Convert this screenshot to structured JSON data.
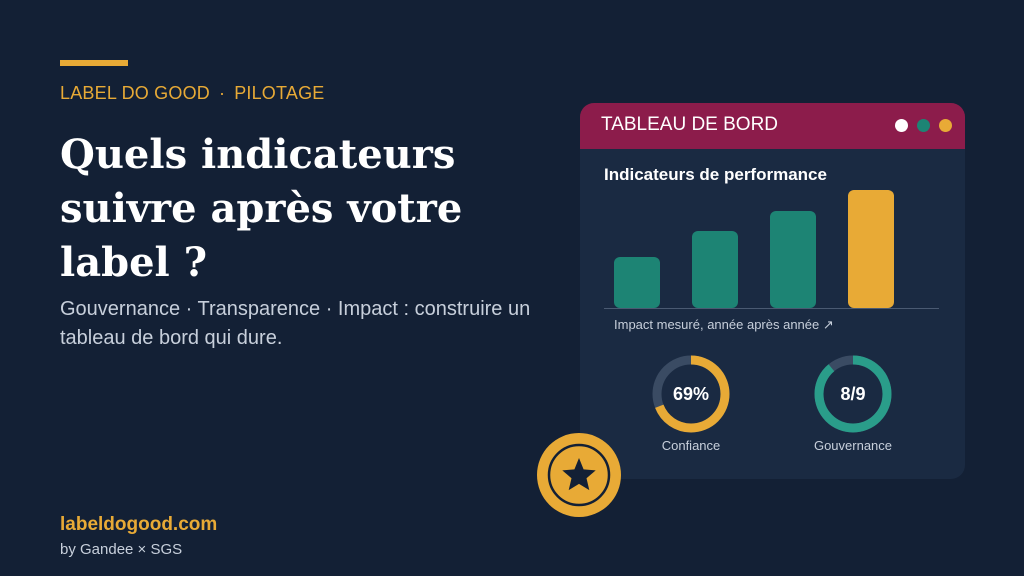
{
  "kicker": {
    "brand": "LABEL DO GOOD",
    "separator": "·",
    "section": "PILOTAGE"
  },
  "hero": {
    "title": "Quels indicateurs suivre après votre label ?",
    "subtitle": "Gouvernance · Transparence · Impact : construire un tableau de bord qui dure."
  },
  "footer": {
    "site": "labeldogood.com",
    "byline": "by Gandee × SGS"
  },
  "card": {
    "title": "TABLEAU DE BORD",
    "panel_title": "Indicateurs de performance",
    "caption": "Impact mesuré, année après année ↗",
    "window_dots": [
      "#ffffff",
      "#1d8474",
      "#e8aa36"
    ]
  },
  "chart_data": {
    "type": "bar",
    "values": [
      1,
      1.5,
      1.9,
      2.3
    ],
    "colors": [
      "#1d8474",
      "#1d8474",
      "#1d8474",
      "#e8aa36"
    ],
    "xlabel": "Impact mesuré, année après année ↗"
  },
  "rings": [
    {
      "label": "69%",
      "caption": "Confiance",
      "fraction": 0.69,
      "color": "#e8aa36"
    },
    {
      "label": "8/9",
      "caption": "Gouvernance",
      "fraction": 0.889,
      "color": "#2a9d8a"
    }
  ],
  "badge": {
    "icon": "star-icon",
    "color": "#e8aa36"
  }
}
